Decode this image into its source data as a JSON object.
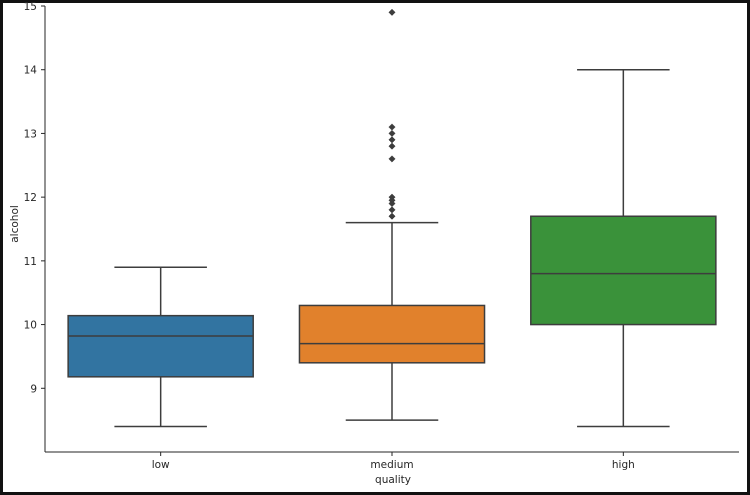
{
  "chart_data": {
    "type": "box",
    "title": "",
    "xlabel": "quality",
    "ylabel": "alcohol",
    "categories": [
      "low",
      "medium",
      "high"
    ],
    "ylim": [
      8.0,
      15.0
    ],
    "yticks": [
      9,
      10,
      11,
      12,
      13,
      14,
      15
    ],
    "grid": false,
    "legend": "none",
    "boxes": [
      {
        "category": "low",
        "whisker_low": 8.4,
        "q1": 9.18,
        "median": 9.82,
        "q3": 10.14,
        "whisker_high": 10.9,
        "outliers": [],
        "color": "#3274a1"
      },
      {
        "category": "medium",
        "whisker_low": 8.5,
        "q1": 9.4,
        "median": 9.7,
        "q3": 10.3,
        "whisker_high": 11.6,
        "outliers": [
          11.7,
          11.8,
          11.9,
          11.95,
          12.0,
          12.6,
          12.8,
          12.9,
          13.0,
          13.1,
          14.9
        ],
        "color": "#e1812c"
      },
      {
        "category": "high",
        "whisker_low": 8.4,
        "q1": 10.0,
        "median": 10.8,
        "q3": 11.7,
        "whisker_high": 14.0,
        "outliers": [],
        "color": "#3a923a"
      }
    ],
    "line_color": "#3d3d3d"
  }
}
